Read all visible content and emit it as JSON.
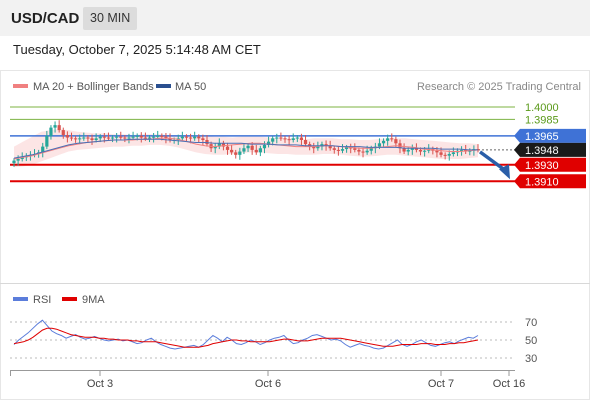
{
  "header": {
    "pair": "USD/CAD",
    "timeframe": "30 MIN"
  },
  "date_line": "Tuesday, October 7, 2025 5:14:48 AM CET",
  "source": "Research © 2025 Trading Central",
  "legend": {
    "ma20_label": "MA 20 + Bollinger Bands",
    "ma50_label": "MA 50"
  },
  "colors": {
    "up_candle": "#26a69a",
    "down_candle": "#d9534f",
    "ma20": "#f08080",
    "ma50": "#4a6fb5",
    "bollinger_fill": "#fbdcdc",
    "support": "#e00000",
    "resistance": "#7cb342",
    "pivot": "#3f72d6",
    "arrow": "#2a5ea8",
    "rsi": "#5b7ddb",
    "rsi_ma": "#e00000"
  },
  "chart_data": [
    {
      "type": "line",
      "subtype": "candlestick",
      "symbol": "USD/CAD",
      "interval": "30 MIN",
      "ylim": [
        1.3905,
        1.4003
      ],
      "x_ticks": [
        "Oct 3",
        "Oct 6",
        "Oct 7",
        "Oct 16"
      ],
      "price_levels": [
        {
          "value": 1.4,
          "label": "1.4000",
          "kind": "resistance"
        },
        {
          "value": 1.3985,
          "label": "1.3985",
          "kind": "resistance"
        },
        {
          "value": 1.3965,
          "label": "1.3965",
          "kind": "pivot"
        },
        {
          "value": 1.3948,
          "label": "1.3948",
          "kind": "last"
        },
        {
          "value": 1.393,
          "label": "1.3930",
          "kind": "support"
        },
        {
          "value": 1.391,
          "label": "1.3910",
          "kind": "support"
        }
      ],
      "close_series": [
        1.3935,
        1.3937,
        1.3939,
        1.3941,
        1.3942,
        1.3943,
        1.3945,
        1.3952,
        1.3965,
        1.3975,
        1.3978,
        1.3972,
        1.3966,
        1.3963,
        1.3962,
        1.3961,
        1.3962,
        1.3963,
        1.3962,
        1.396,
        1.3962,
        1.3964,
        1.3963,
        1.3962,
        1.3963,
        1.3964,
        1.3963,
        1.3962,
        1.3963,
        1.3964,
        1.3965,
        1.3963,
        1.3962,
        1.3963,
        1.3964,
        1.3965,
        1.3964,
        1.3962,
        1.396,
        1.396,
        1.3962,
        1.3964,
        1.3963,
        1.3962,
        1.3964,
        1.3962,
        1.396,
        1.3955,
        1.395,
        1.3952,
        1.3956,
        1.3952,
        1.3948,
        1.3945,
        1.3942,
        1.3946,
        1.395,
        1.3953,
        1.3948,
        1.3945,
        1.395,
        1.3954,
        1.3958,
        1.3962,
        1.3963,
        1.3962,
        1.3961,
        1.396,
        1.3962,
        1.3963,
        1.396,
        1.3955,
        1.3952,
        1.395,
        1.3952,
        1.3955,
        1.3953,
        1.395,
        1.3948,
        1.3947,
        1.3949,
        1.3951,
        1.395,
        1.3948,
        1.3946,
        1.3945,
        1.3947,
        1.395,
        1.3952,
        1.3956,
        1.3959,
        1.3962,
        1.3961,
        1.3956,
        1.395,
        1.3946,
        1.3948,
        1.395,
        1.3948,
        1.3946,
        1.3947,
        1.3949,
        1.3947,
        1.3945,
        1.3942,
        1.3941,
        1.3943,
        1.3945,
        1.3947,
        1.3948,
        1.3946,
        1.3947,
        1.3949,
        1.3948
      ],
      "ma20": [
        1.3937,
        1.3939,
        1.3941,
        1.3944,
        1.3947,
        1.395,
        1.3953,
        1.3955,
        1.3957,
        1.3958,
        1.3959,
        1.396,
        1.396,
        1.396,
        1.3961,
        1.3961,
        1.3962,
        1.3962,
        1.3961,
        1.3958,
        1.3955,
        1.3953,
        1.3952,
        1.3953,
        1.3954,
        1.3955,
        1.3956,
        1.3956,
        1.3955,
        1.3954,
        1.3953,
        1.3952,
        1.3952,
        1.3952,
        1.3953,
        1.3953,
        1.3952,
        1.3951,
        1.395,
        1.395,
        1.3951,
        1.3952,
        1.3953,
        1.3952,
        1.3951,
        1.3949,
        1.3948,
        1.3947,
        1.3946,
        1.3946,
        1.3947,
        1.3948
      ],
      "ma50": [
        1.3938,
        1.394,
        1.3942,
        1.3945,
        1.3948,
        1.3951,
        1.3954,
        1.3956,
        1.3957,
        1.3958,
        1.3959,
        1.396,
        1.396,
        1.3961,
        1.3961,
        1.3961,
        1.3961,
        1.396,
        1.3959,
        1.3958,
        1.3957,
        1.3957,
        1.3956,
        1.3956,
        1.3956,
        1.3956,
        1.3955,
        1.3955,
        1.3955,
        1.3954,
        1.3954,
        1.3954,
        1.3953,
        1.3953,
        1.3953,
        1.3953,
        1.3952,
        1.3952,
        1.3952,
        1.3951,
        1.3951,
        1.3951,
        1.3951,
        1.395,
        1.395,
        1.395,
        1.395,
        1.3949,
        1.3949,
        1.3949,
        1.3948,
        1.3948
      ],
      "bollinger_upper": [
        1.3952,
        1.3958,
        1.3964,
        1.397,
        1.3972,
        1.3973,
        1.3972,
        1.397,
        1.3969,
        1.3968,
        1.3968,
        1.3967,
        1.3967,
        1.3966,
        1.3967,
        1.3967,
        1.3967,
        1.3966,
        1.3966,
        1.3966,
        1.3965,
        1.3965,
        1.3964,
        1.3964,
        1.3963,
        1.3964,
        1.3964,
        1.3964,
        1.3963,
        1.3962,
        1.3962,
        1.3962,
        1.3961,
        1.3962,
        1.3962,
        1.3962,
        1.3961,
        1.3961,
        1.396,
        1.396,
        1.3961,
        1.3962,
        1.3962,
        1.3962,
        1.3961,
        1.396,
        1.3959,
        1.3958,
        1.3957,
        1.3956,
        1.3956,
        1.3955
      ],
      "bollinger_lower": [
        1.3927,
        1.3928,
        1.393,
        1.3934,
        1.3938,
        1.3942,
        1.3946,
        1.3948,
        1.3949,
        1.395,
        1.3951,
        1.3952,
        1.3952,
        1.3953,
        1.3953,
        1.3954,
        1.3954,
        1.3953,
        1.3951,
        1.3948,
        1.3945,
        1.3943,
        1.3942,
        1.3942,
        1.3943,
        1.3944,
        1.3945,
        1.3945,
        1.3944,
        1.3943,
        1.3943,
        1.3942,
        1.3942,
        1.3942,
        1.3943,
        1.3943,
        1.3942,
        1.3941,
        1.394,
        1.394,
        1.3941,
        1.3942,
        1.3942,
        1.3941,
        1.394,
        1.3939,
        1.3938,
        1.3937,
        1.3937,
        1.3937,
        1.3938,
        1.3939
      ],
      "projection": {
        "from": 1.3948,
        "to": 1.391
      }
    },
    {
      "type": "line",
      "title": "RSI",
      "ylim": [
        20,
        80
      ],
      "y_ticks": [
        70,
        50,
        30
      ],
      "series": [
        {
          "name": "RSI",
          "values": [
            45,
            50,
            54,
            58,
            63,
            68,
            72,
            66,
            60,
            57,
            55,
            52,
            54,
            56,
            53,
            51,
            52,
            54,
            52,
            50,
            49,
            50,
            51,
            49,
            50,
            48,
            46,
            47,
            50,
            52,
            48,
            45,
            43,
            41,
            40,
            41,
            42,
            43,
            44,
            42,
            45,
            50,
            55,
            52,
            48,
            53,
            50,
            46,
            45,
            47,
            50,
            48,
            45,
            47,
            50,
            52,
            53,
            55,
            50,
            46,
            47,
            50,
            52,
            55,
            56,
            54,
            52,
            50,
            51,
            49,
            45,
            42,
            44,
            46,
            44,
            43,
            41,
            40,
            41,
            44,
            47,
            50,
            45,
            43,
            45,
            48,
            50,
            47,
            44,
            43,
            45,
            47,
            48,
            46,
            49,
            51,
            53,
            52,
            55
          ]
        },
        {
          "name": "9MA",
          "values": [
            46,
            47,
            48,
            50,
            53,
            57,
            61,
            63,
            63,
            62,
            60,
            58,
            56,
            55,
            54,
            53,
            53,
            53,
            52,
            52,
            51,
            51,
            50,
            50,
            50,
            49,
            49,
            48,
            48,
            48,
            48,
            47,
            46,
            45,
            44,
            43,
            42,
            42,
            42,
            42,
            43,
            44,
            46,
            47,
            48,
            49,
            50,
            50,
            49,
            49,
            48,
            48,
            48,
            48,
            48,
            49,
            50,
            51,
            51,
            50,
            49,
            49,
            49,
            50,
            51,
            52,
            52,
            52,
            52,
            52,
            51,
            50,
            49,
            48,
            47,
            46,
            45,
            44,
            43,
            43,
            43,
            44,
            45,
            45,
            45,
            45,
            46,
            46,
            46,
            45,
            45,
            45,
            46,
            46,
            47,
            47,
            48,
            49,
            50
          ]
        }
      ]
    }
  ]
}
